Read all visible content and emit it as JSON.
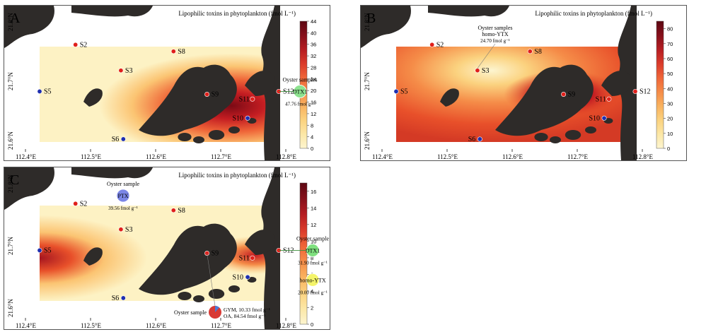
{
  "colorbar_title": "Lipophilic toxins in phytoplankton (fmol L⁻¹)",
  "axes": {
    "x_ticks": [
      "112.4°E",
      "112.5°E",
      "112.6°E",
      "112.7°E",
      "112.8°E"
    ],
    "y_ticks": [
      "21.8°N",
      "21.7°N",
      "21.6°N"
    ]
  },
  "stations": {
    "S2": "S2",
    "S3": "S3",
    "S5": "S5",
    "S6": "S6",
    "S8": "S8",
    "S9": "S9",
    "S10": "S10",
    "S11": "S11",
    "S12": "S12"
  },
  "colors": {
    "high": "#7a0a15",
    "mid": "#e8502a",
    "low": "#fdf2c4",
    "land": "#2e2b29",
    "station_red": "#e0201b",
    "station_blue": "#1f2fb0"
  },
  "panels": [
    {
      "letter": "A",
      "colorbar": {
        "max": 44,
        "ticks": [
          "44",
          "40",
          "36",
          "32",
          "28",
          "24",
          "20",
          "16",
          "12",
          "8",
          "4",
          "0"
        ]
      },
      "annotations": [
        {
          "kind": "bubble",
          "color": "#8de28f",
          "label": "DTX1",
          "title": "Oyster samples",
          "value": "47.76 fmol g⁻¹"
        }
      ]
    },
    {
      "letter": "B",
      "colorbar": {
        "max": 85,
        "ticks": [
          "80",
          "70",
          "60",
          "50",
          "40",
          "30",
          "20",
          "10",
          "0"
        ]
      },
      "annotations": [
        {
          "kind": "text",
          "title": "Oyster samples",
          "line2": "homo-YTX",
          "value": "24.70 fmol g⁻¹"
        }
      ]
    },
    {
      "letter": "C",
      "colorbar": {
        "max": 17,
        "ticks": [
          "16",
          "14",
          "12",
          "10",
          "8",
          "6",
          "4",
          "2",
          "0"
        ]
      },
      "annotations": [
        {
          "kind": "bubble",
          "color": "#7b86e6",
          "label": "PTX",
          "title": "Oyster sample",
          "value": "39.56 fmol g⁻¹"
        },
        {
          "kind": "bubble",
          "color": "#7fe07f",
          "label": "DTX1",
          "title": "Oyster sample",
          "value": "31.90 fmol g⁻¹"
        },
        {
          "kind": "bubble",
          "color": "#f4f46a",
          "label": "homo-YTX",
          "title": "",
          "value": "20.00 fmol g⁻¹"
        },
        {
          "kind": "pie",
          "title": "Oyster sample",
          "line1": "GYM, 10.33 fmol g⁻¹",
          "line2": "OA, 84.54 fmol g⁻¹"
        }
      ]
    }
  ]
}
